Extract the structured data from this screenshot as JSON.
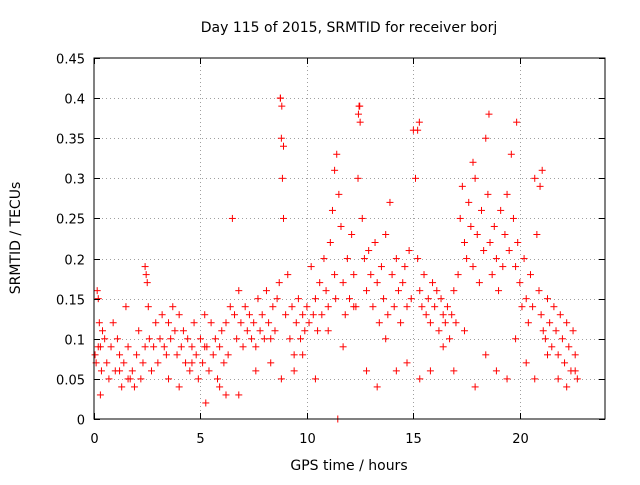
{
  "chart_data": {
    "type": "scatter",
    "title": "Day 115 of 2015, SRMTID for receiver borj",
    "xlabel": "GPS time / hours",
    "ylabel": "SRMTID / TECUs",
    "xlim": [
      0,
      24
    ],
    "ylim": [
      0,
      0.45
    ],
    "xticks": [
      0,
      5,
      10,
      15,
      20
    ],
    "yticks": [
      0,
      0.05,
      0.1,
      0.15,
      0.2,
      0.25,
      0.3,
      0.35,
      0.4,
      0.45
    ],
    "xtick_labels": [
      "0",
      "5",
      "10",
      "15",
      "20"
    ],
    "ytick_labels": [
      "0",
      "0.05",
      "0.1",
      "0.15",
      "0.2",
      "0.25",
      "0.3",
      "0.35",
      "0.4",
      "0.45"
    ],
    "grid": true,
    "marker": "+",
    "color": "#ff0000",
    "series": [
      {
        "name": "SRMTID",
        "x": [
          0.05,
          0.1,
          0.15,
          0.2,
          0.25,
          0.3,
          0.35,
          0.4,
          0.5,
          0.6,
          0.7,
          0.8,
          0.9,
          1.0,
          1.1,
          1.2,
          1.3,
          1.4,
          1.5,
          1.6,
          1.7,
          1.8,
          1.9,
          2.0,
          2.1,
          2.2,
          2.3,
          2.4,
          2.45,
          2.5,
          2.55,
          2.6,
          2.7,
          2.8,
          2.9,
          3.0,
          3.1,
          3.2,
          3.3,
          3.4,
          3.5,
          3.6,
          3.7,
          3.8,
          3.9,
          4.0,
          4.1,
          4.2,
          4.3,
          4.4,
          4.5,
          4.6,
          4.7,
          4.8,
          4.9,
          5.0,
          5.1,
          5.2,
          5.3,
          5.4,
          5.5,
          5.6,
          5.7,
          5.8,
          5.9,
          6.0,
          6.1,
          6.2,
          6.3,
          6.4,
          6.5,
          6.6,
          6.7,
          6.8,
          6.9,
          7.0,
          7.1,
          7.2,
          7.3,
          7.4,
          7.5,
          7.6,
          7.7,
          7.8,
          7.9,
          8.0,
          8.1,
          8.2,
          8.3,
          8.4,
          8.5,
          8.6,
          8.7,
          8.75,
          8.8,
          8.85,
          8.9,
          9.0,
          9.1,
          9.2,
          9.3,
          9.4,
          9.5,
          9.6,
          9.7,
          9.8,
          9.9,
          10.0,
          10.1,
          10.2,
          10.3,
          10.4,
          10.5,
          10.6,
          10.7,
          10.8,
          10.9,
          11.0,
          11.1,
          11.2,
          11.3,
          11.35,
          11.4,
          11.5,
          11.6,
          11.7,
          11.8,
          11.9,
          12.0,
          12.1,
          12.2,
          12.3,
          12.4,
          12.45,
          12.5,
          12.6,
          12.7,
          12.8,
          12.9,
          13.0,
          13.1,
          13.2,
          13.3,
          13.4,
          13.5,
          13.6,
          13.7,
          13.8,
          13.9,
          14.0,
          14.1,
          14.2,
          14.3,
          14.4,
          14.5,
          14.6,
          14.7,
          14.8,
          14.9,
          15.0,
          15.1,
          15.2,
          15.3,
          15.4,
          15.5,
          15.6,
          15.7,
          15.8,
          15.9,
          16.0,
          16.1,
          16.2,
          16.3,
          16.4,
          16.5,
          16.6,
          16.7,
          16.8,
          16.9,
          17.0,
          17.1,
          17.2,
          17.3,
          17.4,
          17.5,
          17.6,
          17.7,
          17.8,
          17.9,
          18.0,
          18.1,
          18.2,
          18.3,
          18.4,
          18.5,
          18.6,
          18.7,
          18.8,
          18.9,
          19.0,
          19.1,
          19.2,
          19.3,
          19.4,
          19.5,
          19.6,
          19.7,
          19.8,
          19.9,
          20.0,
          20.1,
          20.2,
          20.3,
          20.4,
          20.5,
          20.6,
          20.7,
          20.8,
          20.9,
          21.0,
          21.1,
          21.2,
          21.3,
          21.4,
          21.5,
          21.6,
          21.7,
          21.8,
          21.9,
          22.0,
          22.1,
          22.2,
          22.3,
          22.4,
          22.5,
          22.6,
          22.7,
          0.2,
          0.3,
          1.2,
          1.6,
          2.4,
          3.5,
          4.0,
          4.6,
          5.2,
          5.9,
          6.8,
          7.6,
          8.3,
          8.8,
          9.4,
          9.8,
          10.4,
          11.0,
          11.7,
          12.2,
          12.8,
          13.3,
          13.7,
          14.2,
          14.7,
          15.3,
          15.8,
          16.4,
          16.9,
          17.4,
          17.9,
          18.4,
          18.9,
          19.4,
          19.8,
          20.3,
          20.7,
          21.3,
          21.8,
          22.2,
          22.6,
          8.76,
          8.82,
          8.9,
          12.42,
          12.48,
          15.2,
          15.28,
          18.55,
          19.85,
          11.45,
          11.3,
          5.25,
          6.2,
          17.8,
          20.95,
          21.05
        ],
        "y": [
          0.08,
          0.07,
          0.16,
          0.15,
          0.12,
          0.09,
          0.06,
          0.11,
          0.1,
          0.07,
          0.05,
          0.09,
          0.12,
          0.06,
          0.1,
          0.08,
          0.04,
          0.07,
          0.14,
          0.09,
          0.05,
          0.06,
          0.04,
          0.08,
          0.11,
          0.05,
          0.07,
          0.19,
          0.18,
          0.17,
          0.14,
          0.1,
          0.06,
          0.09,
          0.12,
          0.07,
          0.1,
          0.13,
          0.09,
          0.08,
          0.12,
          0.1,
          0.14,
          0.11,
          0.08,
          0.13,
          0.09,
          0.11,
          0.07,
          0.1,
          0.06,
          0.09,
          0.12,
          0.08,
          0.05,
          0.1,
          0.07,
          0.13,
          0.09,
          0.06,
          0.12,
          0.08,
          0.1,
          0.05,
          0.09,
          0.11,
          0.07,
          0.12,
          0.08,
          0.14,
          0.25,
          0.13,
          0.1,
          0.16,
          0.12,
          0.09,
          0.14,
          0.11,
          0.13,
          0.1,
          0.12,
          0.09,
          0.15,
          0.11,
          0.13,
          0.1,
          0.16,
          0.12,
          0.1,
          0.14,
          0.11,
          0.15,
          0.17,
          0.4,
          0.35,
          0.3,
          0.25,
          0.13,
          0.18,
          0.1,
          0.14,
          0.08,
          0.12,
          0.15,
          0.1,
          0.13,
          0.11,
          0.14,
          0.12,
          0.19,
          0.13,
          0.15,
          0.11,
          0.17,
          0.13,
          0.2,
          0.16,
          0.14,
          0.22,
          0.26,
          0.18,
          0.15,
          0.33,
          0.28,
          0.24,
          0.17,
          0.13,
          0.2,
          0.15,
          0.23,
          0.18,
          0.14,
          0.3,
          0.39,
          0.37,
          0.25,
          0.2,
          0.16,
          0.21,
          0.18,
          0.14,
          0.22,
          0.17,
          0.12,
          0.19,
          0.15,
          0.23,
          0.13,
          0.27,
          0.18,
          0.14,
          0.2,
          0.16,
          0.12,
          0.17,
          0.19,
          0.14,
          0.21,
          0.15,
          0.36,
          0.3,
          0.2,
          0.16,
          0.14,
          0.18,
          0.13,
          0.15,
          0.12,
          0.17,
          0.14,
          0.16,
          0.11,
          0.15,
          0.13,
          0.12,
          0.14,
          0.1,
          0.13,
          0.16,
          0.12,
          0.18,
          0.25,
          0.29,
          0.22,
          0.2,
          0.27,
          0.24,
          0.19,
          0.3,
          0.23,
          0.17,
          0.26,
          0.21,
          0.35,
          0.28,
          0.22,
          0.18,
          0.24,
          0.2,
          0.16,
          0.26,
          0.19,
          0.23,
          0.28,
          0.21,
          0.33,
          0.25,
          0.19,
          0.22,
          0.17,
          0.14,
          0.2,
          0.15,
          0.12,
          0.18,
          0.14,
          0.3,
          0.23,
          0.16,
          0.13,
          0.11,
          0.1,
          0.15,
          0.12,
          0.09,
          0.14,
          0.11,
          0.08,
          0.13,
          0.1,
          0.07,
          0.12,
          0.09,
          0.06,
          0.11,
          0.08,
          0.05,
          0.09,
          0.03,
          0.06,
          0.05,
          0.09,
          0.05,
          0.04,
          0.07,
          0.09,
          0.04,
          0.03,
          0.06,
          0.07,
          0.05,
          0.06,
          0.08,
          0.05,
          0.11,
          0.09,
          0.14,
          0.06,
          0.04,
          0.1,
          0.06,
          0.07,
          0.05,
          0.06,
          0.09,
          0.06,
          0.11,
          0.04,
          0.08,
          0.06,
          0.05,
          0.1,
          0.07,
          0.05,
          0.08,
          0.05,
          0.04,
          0.06,
          0.4,
          0.39,
          0.34,
          0.38,
          0.39,
          0.36,
          0.37,
          0.38,
          0.37,
          0.0,
          0.31,
          0.02,
          0.03,
          0.32,
          0.29,
          0.31
        ]
      }
    ]
  }
}
